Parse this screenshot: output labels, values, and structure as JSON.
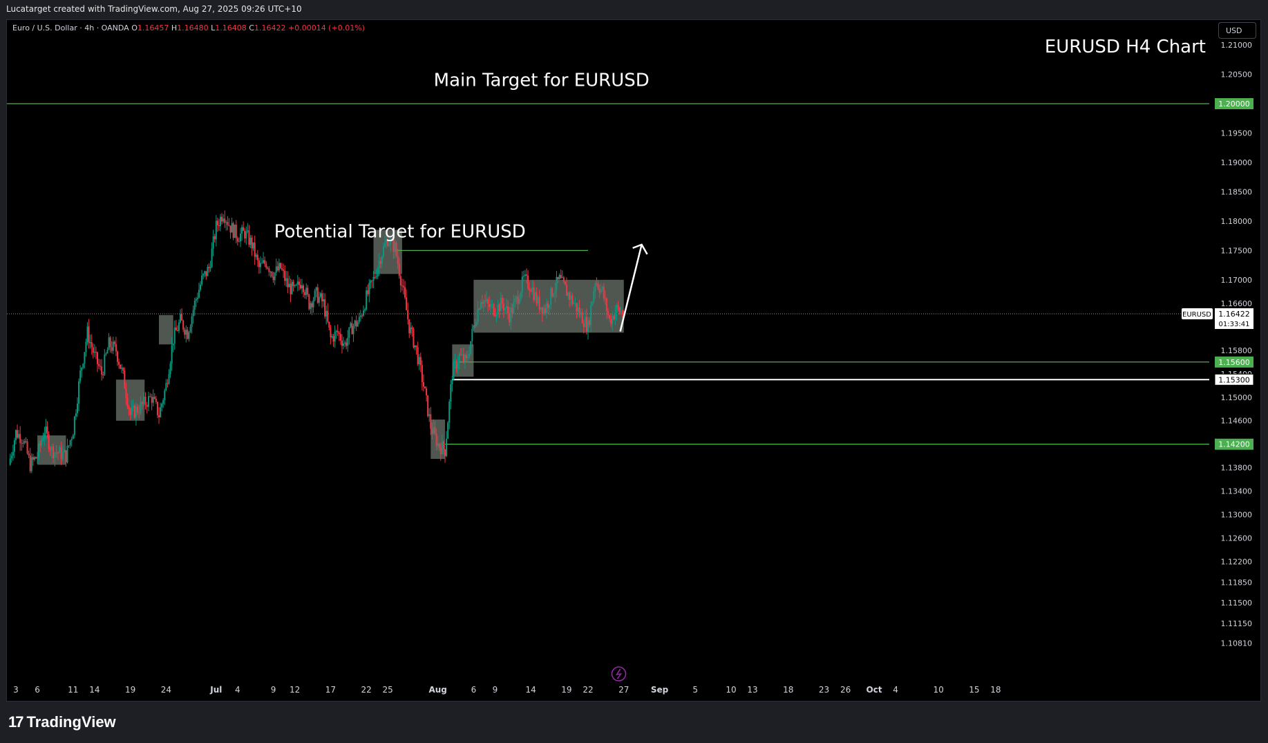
{
  "header": {
    "credit": "Lucatarget created with TradingView.com, Aug 27, 2025 09:26 UTC+10"
  },
  "legend": {
    "symbol": "Euro / U.S. Dollar · 4h · OANDA",
    "open_label": "O",
    "open": "1.16457",
    "high_label": "H",
    "high": "1.16480",
    "low_label": "L",
    "low": "1.16408",
    "close_label": "C",
    "close": "1.16422",
    "change": "+0.00014 (+0.01%)"
  },
  "currency_button": "USD",
  "brand": {
    "name": "TradingView",
    "logo": "17"
  },
  "colors": {
    "up": "#089981",
    "down": "#f23645",
    "green_line": "#4caf50",
    "zone": "rgba(178,194,178,0.45)",
    "background": "#000000"
  },
  "chart_data": {
    "type": "candlestick",
    "symbol": "EURUSD",
    "timeframe": "4h",
    "title": "EURUSD H4 Chart",
    "y_ticks": [
      1.21,
      1.205,
      1.195,
      1.19,
      1.185,
      1.18,
      1.175,
      1.17,
      1.166,
      1.158,
      1.154,
      1.15,
      1.146,
      1.138,
      1.134,
      1.13,
      1.126,
      1.122,
      1.1185,
      1.115,
      1.1115,
      1.1081
    ],
    "y_tick_labels": [
      "1.21000",
      "1.20500",
      "1.19500",
      "1.19000",
      "1.18500",
      "1.18000",
      "1.17500",
      "1.17000",
      "1.16600",
      "1.15800",
      "1.15400",
      "1.15000",
      "1.14600",
      "1.13800",
      "1.13400",
      "1.13000",
      "1.12600",
      "1.12200",
      "1.11850",
      "1.11500",
      "1.11150",
      "1.10810"
    ],
    "x_ticks": [
      {
        "label": "3",
        "day": 3
      },
      {
        "label": "6",
        "day": 6
      },
      {
        "label": "11",
        "day": 11
      },
      {
        "label": "14",
        "day": 14
      },
      {
        "label": "19",
        "day": 19
      },
      {
        "label": "24",
        "day": 24
      },
      {
        "label": "Jul",
        "day": 31,
        "bold": true
      },
      {
        "label": "4",
        "day": 34
      },
      {
        "label": "9",
        "day": 39
      },
      {
        "label": "12",
        "day": 42
      },
      {
        "label": "17",
        "day": 47
      },
      {
        "label": "22",
        "day": 52
      },
      {
        "label": "25",
        "day": 55
      },
      {
        "label": "Aug",
        "day": 62,
        "bold": true
      },
      {
        "label": "6",
        "day": 67
      },
      {
        "label": "9",
        "day": 70
      },
      {
        "label": "14",
        "day": 75
      },
      {
        "label": "19",
        "day": 80
      },
      {
        "label": "22",
        "day": 83
      },
      {
        "label": "27",
        "day": 88
      },
      {
        "label": "Sep",
        "day": 93,
        "bold": true
      },
      {
        "label": "5",
        "day": 98
      },
      {
        "label": "10",
        "day": 103
      },
      {
        "label": "13",
        "day": 106
      },
      {
        "label": "18",
        "day": 111
      },
      {
        "label": "23",
        "day": 116
      },
      {
        "label": "26",
        "day": 119
      },
      {
        "label": "Oct",
        "day": 123,
        "bold": true
      },
      {
        "label": "4",
        "day": 126
      },
      {
        "label": "10",
        "day": 132
      },
      {
        "label": "15",
        "day": 137
      },
      {
        "label": "18",
        "day": 140
      }
    ],
    "price_path": [
      [
        2,
        1.1385
      ],
      [
        3,
        1.144
      ],
      [
        4,
        1.143
      ],
      [
        5,
        1.1385
      ],
      [
        6,
        1.14
      ],
      [
        7,
        1.1445
      ],
      [
        8,
        1.141
      ],
      [
        10,
        1.14
      ],
      [
        11,
        1.1445
      ],
      [
        12,
        1.154
      ],
      [
        13,
        1.161
      ],
      [
        14,
        1.157
      ],
      [
        15,
        1.154
      ],
      [
        16,
        1.159
      ],
      [
        17,
        1.158
      ],
      [
        18,
        1.1535
      ],
      [
        19,
        1.147
      ],
      [
        20,
        1.148
      ],
      [
        22,
        1.15
      ],
      [
        23,
        1.147
      ],
      [
        24,
        1.152
      ],
      [
        25,
        1.16
      ],
      [
        26,
        1.163
      ],
      [
        27,
        1.161
      ],
      [
        28,
        1.166
      ],
      [
        29,
        1.17
      ],
      [
        30,
        1.172
      ],
      [
        31,
        1.179
      ],
      [
        32,
        1.1815
      ],
      [
        33,
        1.179
      ],
      [
        34,
        1.1775
      ],
      [
        35,
        1.178
      ],
      [
        36,
        1.176
      ],
      [
        37,
        1.172
      ],
      [
        38,
        1.173
      ],
      [
        39,
        1.171
      ],
      [
        40,
        1.172
      ],
      [
        41,
        1.169
      ],
      [
        42,
        1.168
      ],
      [
        43,
        1.17
      ],
      [
        44,
        1.166
      ],
      [
        45,
        1.1675
      ],
      [
        46,
        1.166
      ],
      [
        47,
        1.16
      ],
      [
        48,
        1.161
      ],
      [
        49,
        1.159
      ],
      [
        50,
        1.162
      ],
      [
        51,
        1.163
      ],
      [
        52,
        1.167
      ],
      [
        53,
        1.17
      ],
      [
        54,
        1.174
      ],
      [
        55,
        1.177
      ],
      [
        56,
        1.1755
      ],
      [
        57,
        1.169
      ],
      [
        58,
        1.162
      ],
      [
        59,
        1.158
      ],
      [
        60,
        1.152
      ],
      [
        61,
        1.145
      ],
      [
        62,
        1.142
      ],
      [
        63,
        1.141
      ],
      [
        64,
        1.154
      ],
      [
        65,
        1.157
      ],
      [
        66,
        1.156
      ],
      [
        67,
        1.162
      ],
      [
        68,
        1.167
      ],
      [
        69,
        1.1655
      ],
      [
        70,
        1.165
      ],
      [
        71,
        1.166
      ],
      [
        72,
        1.164
      ],
      [
        73,
        1.1665
      ],
      [
        74,
        1.17
      ],
      [
        75,
        1.169
      ],
      [
        76,
        1.166
      ],
      [
        77,
        1.165
      ],
      [
        78,
        1.168
      ],
      [
        79,
        1.17
      ],
      [
        80,
        1.168
      ],
      [
        81,
        1.166
      ],
      [
        82,
        1.164
      ],
      [
        83,
        1.162
      ],
      [
        84,
        1.17
      ],
      [
        85,
        1.168
      ],
      [
        86,
        1.163
      ],
      [
        87,
        1.165
      ],
      [
        88,
        1.1642
      ]
    ],
    "zones": [
      {
        "day_from": 6,
        "day_to": 10,
        "low": 1.1385,
        "high": 1.1435
      },
      {
        "day_from": 17,
        "day_to": 21,
        "low": 1.146,
        "high": 1.153
      },
      {
        "day_from": 23,
        "day_to": 25,
        "low": 1.159,
        "high": 1.164
      },
      {
        "day_from": 53,
        "day_to": 57,
        "low": 1.171,
        "high": 1.1785
      },
      {
        "day_from": 61,
        "day_to": 63,
        "low": 1.1395,
        "high": 1.1462
      },
      {
        "day_from": 64,
        "day_to": 67,
        "low": 1.1535,
        "high": 1.159
      },
      {
        "day_from": 67,
        "day_to": 88,
        "low": 1.161,
        "high": 1.17
      }
    ],
    "levels": [
      {
        "price": 1.2,
        "label": "1.20000",
        "color": "#4caf50",
        "style": "full",
        "day_from": 0
      },
      {
        "price": 1.156,
        "label": "1.15600",
        "color": "#4caf50",
        "style": "full",
        "day_from": 65
      },
      {
        "price": 1.153,
        "label": "1.15300",
        "color": "#ffffff",
        "style": "full",
        "day_from": 64
      },
      {
        "price": 1.142,
        "label": "1.14200",
        "color": "#4caf50",
        "style": "full",
        "day_from": 63
      },
      {
        "price": 1.175,
        "color": "#4caf50",
        "style": "segment",
        "day_from": 56,
        "day_to": 83
      }
    ],
    "current_price": {
      "value": 1.16422,
      "symbol": "EURUSD",
      "label": "1.16422",
      "countdown": "01:33:41"
    },
    "annotations": [
      {
        "text": "Main Target for EURUSD",
        "day": 76.5,
        "price": 1.203,
        "size": 26
      },
      {
        "text": "Potential Target for EURUSD",
        "day": 56.7,
        "price": 1.1772,
        "size": 26
      }
    ],
    "arrow": {
      "from_day": 87.5,
      "from_price": 1.1612,
      "to_day": 90.5,
      "to_price": 1.176
    }
  }
}
